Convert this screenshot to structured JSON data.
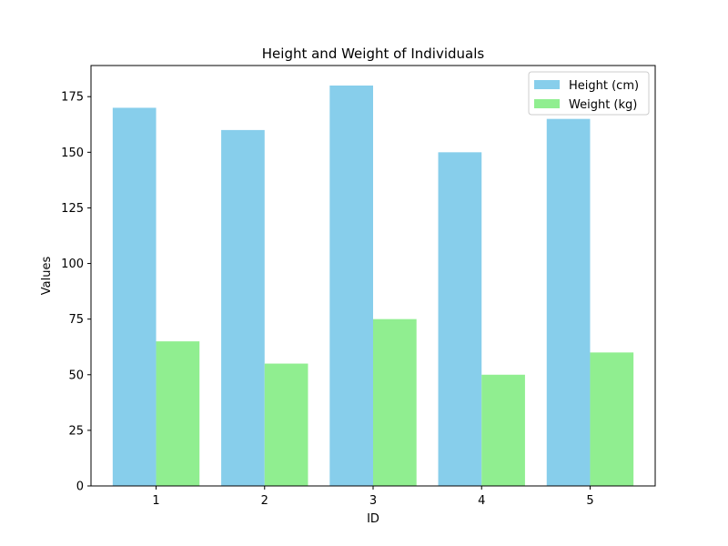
{
  "chart_data": {
    "type": "bar",
    "title": "Height and Weight of Individuals",
    "xlabel": "ID",
    "ylabel": "Values",
    "categories": [
      "1",
      "2",
      "3",
      "4",
      "5"
    ],
    "series": [
      {
        "name": "Height (cm)",
        "values": [
          170,
          160,
          180,
          150,
          165
        ],
        "color": "#87ceeb"
      },
      {
        "name": "Weight (kg)",
        "values": [
          65,
          55,
          75,
          50,
          60
        ],
        "color": "#90ee90"
      }
    ],
    "ylim": [
      0,
      189
    ],
    "yticks": [
      0,
      25,
      50,
      75,
      100,
      125,
      150,
      175
    ],
    "grid": false,
    "legend_position": "top-right"
  }
}
